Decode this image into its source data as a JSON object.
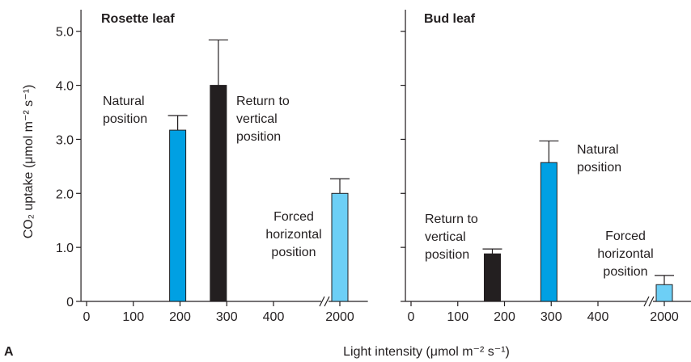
{
  "panel_label": "A",
  "xlabel": "Light intensity (μmol m⁻² s⁻¹)",
  "chart_data": [
    {
      "type": "bar",
      "title": "Rosette leaf",
      "ylabel": "CO₂ uptake (μmol m⁻² s⁻¹)",
      "x": [
        195,
        282,
        2000
      ],
      "values": [
        3.17,
        4.0,
        2.0
      ],
      "errors": [
        0.27,
        0.84,
        0.27
      ],
      "colors": [
        "#00a0e3",
        "#231f20",
        "#6dcff6"
      ],
      "annotations": [
        [
          "Natural",
          "position"
        ],
        [
          "Return to",
          "vertical",
          "position"
        ],
        [
          "Forced",
          "horizontal",
          "position"
        ]
      ],
      "xlim": [
        -12,
        2060
      ],
      "xticks": [
        0,
        100,
        200,
        300,
        400,
        2000
      ],
      "x_break": true,
      "ylim": [
        0,
        5.4
      ],
      "yticks": [
        0,
        {
          "value": 1,
          "label": "1.0"
        },
        {
          "value": 2,
          "label": "2.0"
        },
        {
          "value": 3,
          "label": "3.0"
        },
        {
          "value": 4,
          "label": "4.0"
        },
        {
          "value": 5,
          "label": "5.0"
        }
      ],
      "ytick_labels": true
    },
    {
      "type": "bar",
      "title": "Bud leaf",
      "x": [
        174,
        295,
        2000
      ],
      "values": [
        0.88,
        2.57,
        0.31
      ],
      "errors": [
        0.09,
        0.4,
        0.17
      ],
      "colors": [
        "#231f20",
        "#00a0e3",
        "#6dcff6"
      ],
      "annotations": [
        [
          "Return to",
          "vertical",
          "position"
        ],
        [
          "Natural",
          "position"
        ],
        [
          "Forced",
          "horizontal",
          "position"
        ]
      ],
      "xlim": [
        -12,
        2060
      ],
      "xticks": [
        0,
        100,
        200,
        300,
        400,
        2000
      ],
      "x_break": true,
      "ylim": [
        0,
        5.4
      ],
      "yticks": [
        0,
        1,
        2,
        3,
        4,
        5
      ],
      "ytick_labels": false
    }
  ]
}
